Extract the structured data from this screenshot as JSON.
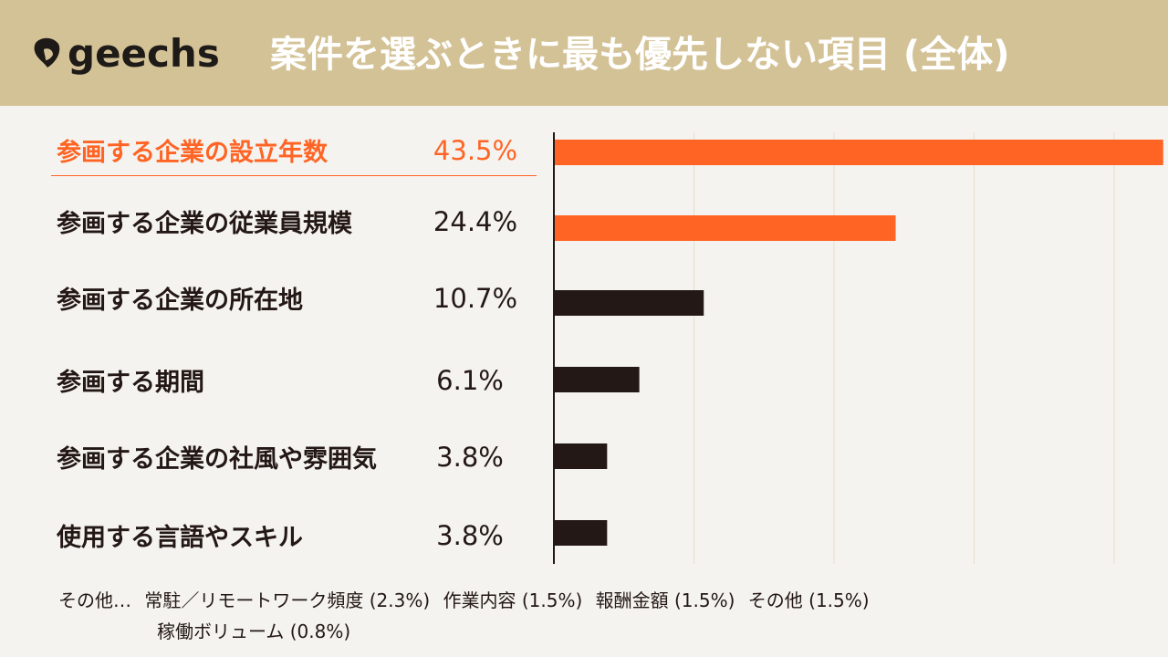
{
  "header": {
    "logo_text": "geechs",
    "title": "案件を選ぶときに最も優先しない項目 (全体)"
  },
  "colors": {
    "header_bg": "#d4c297",
    "highlight": "#ff6424",
    "bar_dark": "#231815",
    "background": "#f5f3ef"
  },
  "chart_data": {
    "type": "bar",
    "orientation": "horizontal",
    "title": "案件を選ぶときに最も優先しない項目 (全体)",
    "categories": [
      "参画する企業の設立年数",
      "参画する企業の従業員規模",
      "参画する企業の所在地",
      "参画する期間",
      "参画する企業の社風や雰囲気",
      "使用する言語やスキル"
    ],
    "values": [
      43.5,
      24.4,
      10.7,
      6.1,
      3.8,
      3.8
    ],
    "value_labels": [
      "43.5%",
      "24.4%",
      "10.7%",
      "6.1%",
      "3.8%",
      "3.8%"
    ],
    "highlighted": [
      true,
      true,
      false,
      false,
      false,
      false
    ],
    "xlim": [
      0,
      40
    ],
    "gridlines": [
      10,
      20,
      30,
      40
    ],
    "grid": true,
    "unit": "%"
  },
  "footer": {
    "prefix": "その他…",
    "items": [
      "常駐／リモートワーク頻度 (2.3%)",
      "作業内容 (1.5%)",
      "報酬金額 (1.5%)",
      "その他 (1.5%)"
    ],
    "line2": "稼働ボリューム (0.8%)"
  }
}
